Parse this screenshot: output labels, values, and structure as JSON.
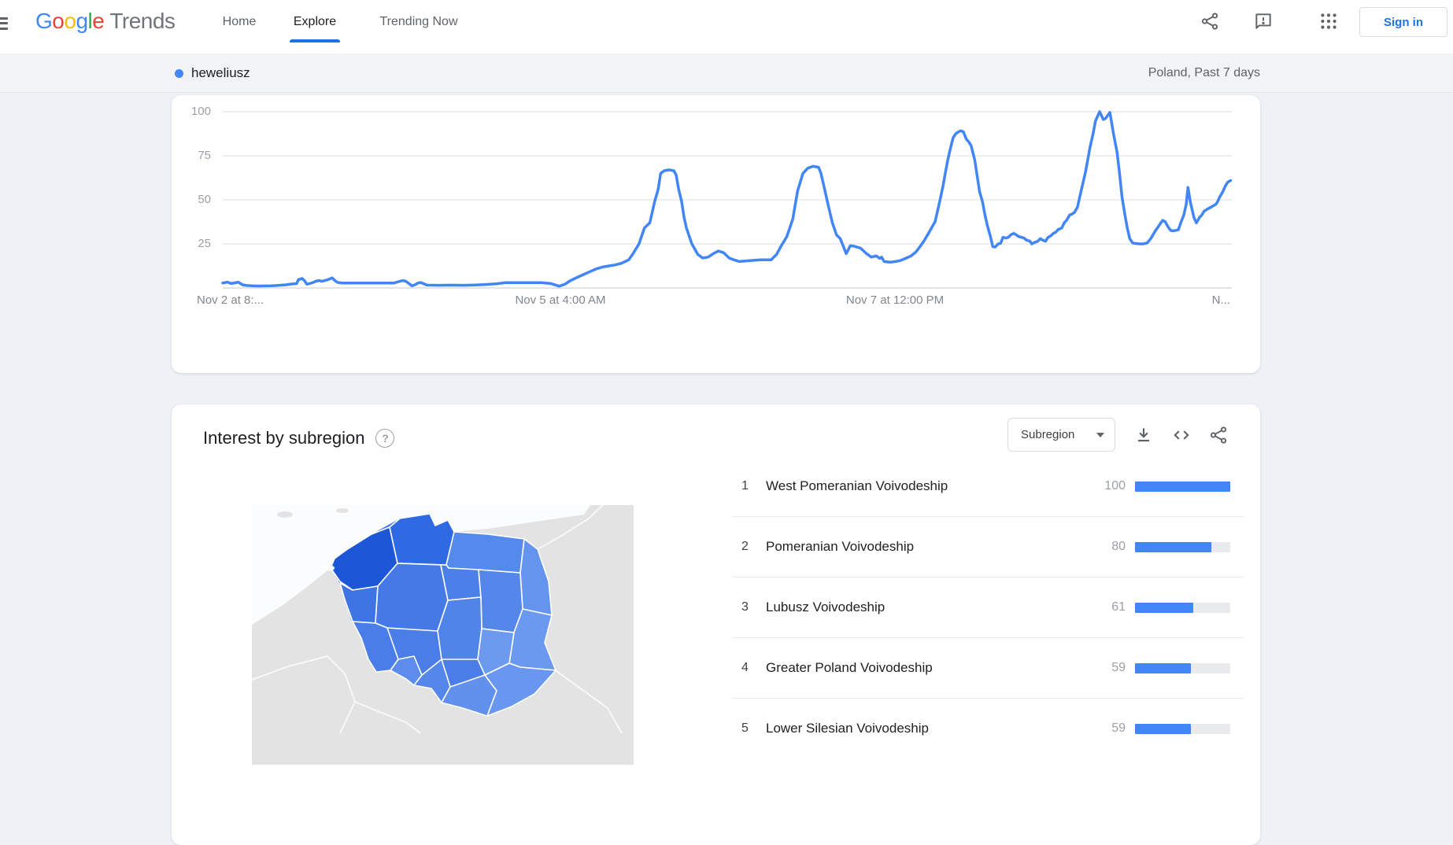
{
  "header": {
    "logo": {
      "letters": [
        {
          "ch": "G",
          "color": "#4285F4"
        },
        {
          "ch": "o",
          "color": "#EA4335"
        },
        {
          "ch": "o",
          "color": "#FBBC05"
        },
        {
          "ch": "g",
          "color": "#4285F4"
        },
        {
          "ch": "l",
          "color": "#34A853"
        },
        {
          "ch": "e",
          "color": "#EA4335"
        }
      ],
      "suffix": "Trends"
    },
    "nav": [
      {
        "label": "Home",
        "active": false,
        "x": 304
      },
      {
        "label": "Explore",
        "active": true,
        "x": 400
      },
      {
        "label": "Trending Now",
        "active": false,
        "x": 532
      }
    ],
    "icons": [
      "share-icon",
      "feedback-icon",
      "apps-grid-icon"
    ],
    "sign_in_label": "Sign in",
    "accent_color": "#1a73e8"
  },
  "term_bar": {
    "term": "heweliusz",
    "dot_color": "#4285f4",
    "scope": "Poland, Past 7 days"
  },
  "chart_data": {
    "type": "line",
    "series_name": "heweliusz",
    "line_color": "#4285f4",
    "ylim": [
      0,
      100
    ],
    "yticks": [
      25,
      50,
      75,
      100
    ],
    "grid": true,
    "x_hours_span": 168,
    "x_axis_labels": [
      "Nov 2 at 8:...",
      "Nov 5 at 4:00 AM",
      "Nov 7 at 12:00 PM",
      "N..."
    ],
    "points": [
      [
        0,
        2.8
      ],
      [
        0.8,
        3.3
      ],
      [
        1.4,
        2.5
      ],
      [
        2.6,
        3.3
      ],
      [
        3.3,
        1.8
      ],
      [
        4,
        1.4
      ],
      [
        5,
        1.2
      ],
      [
        6,
        1.1
      ],
      [
        8,
        1.2
      ],
      [
        9,
        1.4
      ],
      [
        10.5,
        1.8
      ],
      [
        11.3,
        2.2
      ],
      [
        12.3,
        2.5
      ],
      [
        12.6,
        4.7
      ],
      [
        13.2,
        5.4
      ],
      [
        13.6,
        4.2
      ],
      [
        14,
        2.2
      ],
      [
        14.5,
        2.5
      ],
      [
        15,
        3.1
      ],
      [
        15.5,
        3.8
      ],
      [
        16,
        4.2
      ],
      [
        16.5,
        3.8
      ],
      [
        17,
        4.2
      ],
      [
        17.5,
        4.7
      ],
      [
        18.2,
        5.7
      ],
      [
        18.8,
        3.8
      ],
      [
        19.2,
        3.1
      ],
      [
        20,
        2.8
      ],
      [
        22,
        2.8
      ],
      [
        24,
        2.8
      ],
      [
        26,
        2.8
      ],
      [
        28.5,
        2.8
      ],
      [
        29.5,
        3.8
      ],
      [
        30,
        4.2
      ],
      [
        30.5,
        3.8
      ],
      [
        31,
        2.5
      ],
      [
        31.5,
        1.2
      ],
      [
        32,
        1.8
      ],
      [
        32.5,
        2.8
      ],
      [
        33,
        3.1
      ],
      [
        34,
        1.6
      ],
      [
        36,
        1.5
      ],
      [
        38,
        1.6
      ],
      [
        40,
        1.5
      ],
      [
        42,
        1.7
      ],
      [
        44,
        2
      ],
      [
        45.5,
        2.3
      ],
      [
        47,
        3
      ],
      [
        49,
        3
      ],
      [
        51,
        3
      ],
      [
        53,
        3
      ],
      [
        54.5,
        2.6
      ],
      [
        55.5,
        1.6
      ],
      [
        56,
        1
      ],
      [
        57,
        2.2
      ],
      [
        57.8,
        4
      ],
      [
        59,
        6
      ],
      [
        60.3,
        8
      ],
      [
        61.3,
        9.5
      ],
      [
        62.3,
        11
      ],
      [
        63.4,
        12
      ],
      [
        64.3,
        12.5
      ],
      [
        65.2,
        13
      ],
      [
        66.4,
        14
      ],
      [
        67.6,
        16
      ],
      [
        68.4,
        20
      ],
      [
        69.3,
        25
      ],
      [
        70.2,
        34
      ],
      [
        71.1,
        37
      ],
      [
        71.9,
        49
      ],
      [
        72.5,
        56
      ],
      [
        72.9,
        65
      ],
      [
        73.5,
        66.5
      ],
      [
        74.3,
        67
      ],
      [
        75.1,
        66.5
      ],
      [
        75.5,
        64
      ],
      [
        75.9,
        56
      ],
      [
        76.4,
        49
      ],
      [
        76.8,
        40
      ],
      [
        77.2,
        34
      ],
      [
        77.7,
        29
      ],
      [
        78.1,
        25
      ],
      [
        79.1,
        19
      ],
      [
        79.9,
        17
      ],
      [
        80.8,
        17.5
      ],
      [
        81.7,
        19.5
      ],
      [
        82.5,
        21
      ],
      [
        83.4,
        20
      ],
      [
        84.3,
        17
      ],
      [
        85.1,
        16
      ],
      [
        86,
        15
      ],
      [
        87.7,
        15.5
      ],
      [
        89.6,
        16
      ],
      [
        91.3,
        16
      ],
      [
        92.2,
        19
      ],
      [
        93,
        24
      ],
      [
        93.9,
        29
      ],
      [
        94.9,
        39
      ],
      [
        95.7,
        55
      ],
      [
        96.6,
        65
      ],
      [
        97.4,
        68
      ],
      [
        98.3,
        69
      ],
      [
        99.2,
        68.5
      ],
      [
        99.6,
        65
      ],
      [
        100.1,
        57.5
      ],
      [
        100.8,
        47
      ],
      [
        101.5,
        37
      ],
      [
        101.8,
        34
      ],
      [
        102.2,
        30
      ],
      [
        102.8,
        28
      ],
      [
        103.4,
        23
      ],
      [
        103.8,
        19.5
      ],
      [
        104.5,
        24
      ],
      [
        105.1,
        23.7
      ],
      [
        105.8,
        23
      ],
      [
        106.2,
        22.6
      ],
      [
        107.1,
        19.7
      ],
      [
        108,
        17.5
      ],
      [
        108.8,
        18.2
      ],
      [
        109.4,
        16.8
      ],
      [
        109.7,
        17.5
      ],
      [
        110.1,
        15
      ],
      [
        111.1,
        14.6
      ],
      [
        112,
        15
      ],
      [
        112.8,
        15.6
      ],
      [
        113.7,
        16.8
      ],
      [
        114.6,
        18.2
      ],
      [
        115.4,
        20.4
      ],
      [
        115.9,
        22.6
      ],
      [
        116.7,
        26.4
      ],
      [
        117.6,
        31.6
      ],
      [
        118.6,
        37.6
      ],
      [
        119,
        43.6
      ],
      [
        119.4,
        49.5
      ],
      [
        119.9,
        57.7
      ],
      [
        120.3,
        65.2
      ],
      [
        120.7,
        72.6
      ],
      [
        121.2,
        80
      ],
      [
        121.6,
        85.2
      ],
      [
        122,
        87.4
      ],
      [
        122.5,
        88.6
      ],
      [
        122.9,
        89.2
      ],
      [
        123.3,
        88.6
      ],
      [
        123.8,
        84.4
      ],
      [
        124.2,
        82.9
      ],
      [
        124.6,
        80.7
      ],
      [
        125.2,
        72.6
      ],
      [
        125.6,
        63.7
      ],
      [
        126,
        54.7
      ],
      [
        126.5,
        48.8
      ],
      [
        126.9,
        41.4
      ],
      [
        127.3,
        35.4
      ],
      [
        127.8,
        29.4
      ],
      [
        128.2,
        23.5
      ],
      [
        128.6,
        23.2
      ],
      [
        129.1,
        25
      ],
      [
        129.5,
        25.3
      ],
      [
        129.9,
        28.7
      ],
      [
        130.4,
        28.3
      ],
      [
        130.8,
        28.7
      ],
      [
        131.2,
        30.2
      ],
      [
        131.7,
        31
      ],
      [
        132.1,
        30.2
      ],
      [
        132.5,
        29.2
      ],
      [
        133,
        28.7
      ],
      [
        133.4,
        28.3
      ],
      [
        133.8,
        27.2
      ],
      [
        134.4,
        26.5
      ],
      [
        134.7,
        25
      ],
      [
        135.1,
        25.7
      ],
      [
        135.7,
        26.5
      ],
      [
        136.1,
        28
      ],
      [
        136.5,
        27.2
      ],
      [
        137,
        26.5
      ],
      [
        137.4,
        28.7
      ],
      [
        137.8,
        29.4
      ],
      [
        138.3,
        31
      ],
      [
        138.7,
        31.7
      ],
      [
        139.1,
        33.2
      ],
      [
        139.7,
        34
      ],
      [
        140.1,
        37
      ],
      [
        140.5,
        38.4
      ],
      [
        141,
        41.4
      ],
      [
        141.4,
        41.9
      ],
      [
        141.8,
        42.9
      ],
      [
        142.3,
        45.9
      ],
      [
        142.7,
        51.9
      ],
      [
        143.1,
        57.9
      ],
      [
        143.6,
        65.2
      ],
      [
        144,
        72.6
      ],
      [
        144.4,
        80
      ],
      [
        144.9,
        87.4
      ],
      [
        145.3,
        94.8
      ],
      [
        146,
        100
      ],
      [
        146.6,
        95.6
      ],
      [
        147,
        96.3
      ],
      [
        147.7,
        99.6
      ],
      [
        148.3,
        87.4
      ],
      [
        148.9,
        77
      ],
      [
        149.3,
        65.2
      ],
      [
        149.7,
        51.9
      ],
      [
        150.2,
        41.4
      ],
      [
        150.6,
        34
      ],
      [
        151,
        28
      ],
      [
        151.5,
        25.5
      ],
      [
        151.9,
        25.3
      ],
      [
        152.6,
        25
      ],
      [
        153.2,
        25
      ],
      [
        153.9,
        25.5
      ],
      [
        154.5,
        28
      ],
      [
        155.2,
        32
      ],
      [
        155.6,
        34
      ],
      [
        156.1,
        36.5
      ],
      [
        156.5,
        38.4
      ],
      [
        156.9,
        37.6
      ],
      [
        157.4,
        34.6
      ],
      [
        157.8,
        32.7
      ],
      [
        158.2,
        32.4
      ],
      [
        158.7,
        32.7
      ],
      [
        159.1,
        33.1
      ],
      [
        159.5,
        36.9
      ],
      [
        160,
        41.4
      ],
      [
        160.4,
        47.3
      ],
      [
        160.7,
        57
      ],
      [
        161.1,
        48.8
      ],
      [
        161.5,
        42.8
      ],
      [
        161.7,
        39.9
      ],
      [
        162.1,
        36.9
      ],
      [
        162.6,
        39.9
      ],
      [
        163,
        41.4
      ],
      [
        163.4,
        43.6
      ],
      [
        163.9,
        44.7
      ],
      [
        164.5,
        45.8
      ],
      [
        164.9,
        46.6
      ],
      [
        165.3,
        47.3
      ],
      [
        165.6,
        48.8
      ],
      [
        166,
        51.7
      ],
      [
        166.5,
        54.7
      ],
      [
        166.9,
        57.7
      ],
      [
        167.3,
        60
      ],
      [
        167.8,
        61
      ]
    ]
  },
  "subregion": {
    "title": "Interest by subregion",
    "help_icon": "?",
    "dropdown_value": "Subregion",
    "toolbar_icons": [
      "download-icon",
      "embed-icon",
      "share-icon"
    ],
    "bar_color": "#4285f4",
    "bar_max": 100,
    "rows": [
      {
        "rank": 1,
        "name": "West Pomeranian Voivodeship",
        "value": 100
      },
      {
        "rank": 2,
        "name": "Pomeranian Voivodeship",
        "value": 80
      },
      {
        "rank": 3,
        "name": "Lubusz Voivodeship",
        "value": 61
      },
      {
        "rank": 4,
        "name": "Greater Poland Voivodeship",
        "value": 59
      },
      {
        "rank": 5,
        "name": "Lower Silesian Voivodeship",
        "value": 59
      }
    ],
    "map": {
      "map_type": "choropleth",
      "land_color": "#e3e3e3",
      "sea_color": "#fbfcfd",
      "border_color": "#ffffff",
      "regions": [
        {
          "key": "zachodniopomorskie",
          "name": "West Pomeranian",
          "color": "#1d57d8"
        },
        {
          "key": "pomorskie",
          "name": "Pomeranian",
          "color": "#2f6ae2"
        },
        {
          "key": "warminsko",
          "name": "Warmian-Masurian",
          "color": "#548aeb"
        },
        {
          "key": "podlaskie",
          "name": "Podlaskie",
          "color": "#6394ee"
        },
        {
          "key": "lubuskie",
          "name": "Lubusz",
          "color": "#3f74e4"
        },
        {
          "key": "wielkopolskie",
          "name": "Greater Poland",
          "color": "#4579e6"
        },
        {
          "key": "kujawsko",
          "name": "Kuyavian-Pomeranian",
          "color": "#4b80e8"
        },
        {
          "key": "mazowieckie",
          "name": "Masovian",
          "color": "#5587ea"
        },
        {
          "key": "lubelskie",
          "name": "Lublin",
          "color": "#6b99ef"
        },
        {
          "key": "lodzkie",
          "name": "Lodz",
          "color": "#5184e9"
        },
        {
          "key": "dolnoslaskie",
          "name": "Lower Silesian",
          "color": "#4a7de7"
        },
        {
          "key": "opolskie",
          "name": "Opole",
          "color": "#5d8dec"
        },
        {
          "key": "slaskie",
          "name": "Silesian",
          "color": "#5586ea"
        },
        {
          "key": "swietokrzyskie",
          "name": "Swietokrzyskie",
          "color": "#6c9aef"
        },
        {
          "key": "malopolskie",
          "name": "Lesser Poland",
          "color": "#6191ed"
        },
        {
          "key": "podkarpackie",
          "name": "Subcarpathian",
          "color": "#6996ee"
        }
      ]
    }
  }
}
